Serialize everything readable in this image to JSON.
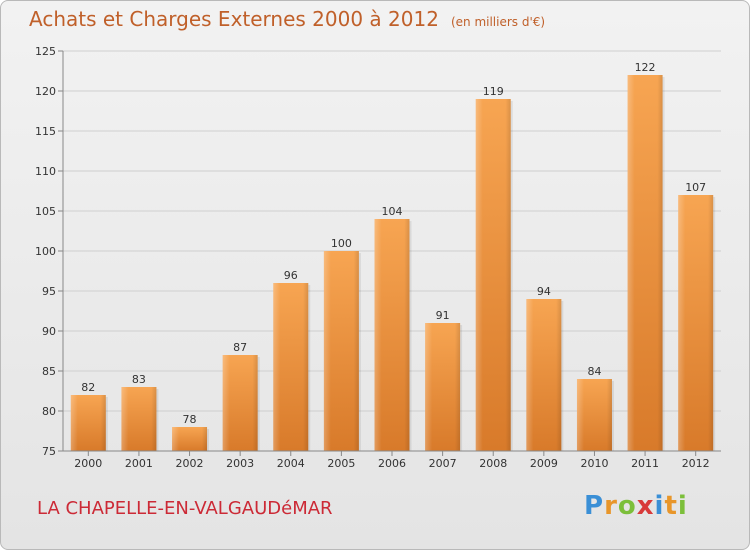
{
  "header": {
    "title": "Achats et Charges Externes 2000 à 2012",
    "subtitle": "(en milliers d'€)"
  },
  "footer": {
    "commune": "LA CHAPELLE-EN-VALGAUDéMAR",
    "brand": "Proxiti",
    "brand_letters": [
      {
        "char": "P",
        "color": "#3a8fd6"
      },
      {
        "char": "r",
        "color": "#e8962a"
      },
      {
        "char": "o",
        "color": "#7cbf3a"
      },
      {
        "char": "x",
        "color": "#d83a3a"
      },
      {
        "char": "i",
        "color": "#3a8fd6"
      },
      {
        "char": "t",
        "color": "#e8962a"
      },
      {
        "char": "i",
        "color": "#7cbf3a"
      }
    ]
  },
  "colors": {
    "bar_light": "#f7a552",
    "bar_dark": "#d87a2a",
    "title": "#c0602a",
    "commune": "#cc2a36"
  },
  "chart_data": {
    "type": "bar",
    "categories": [
      "2000",
      "2001",
      "2002",
      "2003",
      "2004",
      "2005",
      "2006",
      "2007",
      "2008",
      "2009",
      "2010",
      "2011",
      "2012"
    ],
    "values": [
      82,
      83,
      78,
      87,
      96,
      100,
      104,
      91,
      119,
      94,
      84,
      122,
      107
    ],
    "ylim": [
      75,
      125
    ],
    "yticks": [
      75,
      80,
      85,
      90,
      95,
      100,
      105,
      110,
      115,
      120,
      125
    ],
    "title": "Achats et Charges Externes 2000 à 2012",
    "grid": true,
    "legend": "none"
  }
}
